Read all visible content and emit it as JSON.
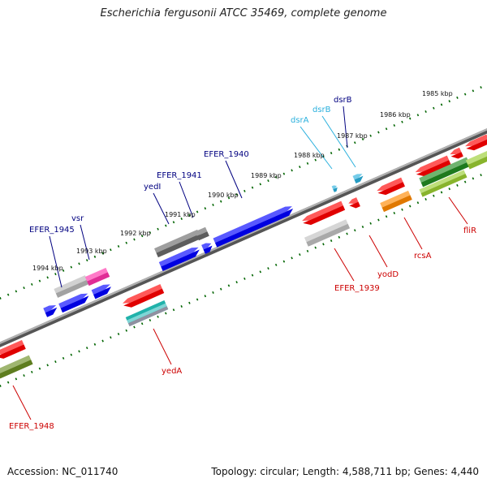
{
  "title": "Escherichia fergusonii ATCC 35469, complete genome",
  "footer": {
    "accession": "Accession: NC_011740",
    "topology": "Topology: circular; Length: 4,588,711 bp; Genes: 4,440"
  },
  "colors": {
    "forward_label": "#000080",
    "reverse_label": "#cc0000",
    "rna_label": "#2ab0dd",
    "track": "#777777",
    "tick": "#006400"
  },
  "ruler": {
    "labels": [
      {
        "text": "1985 kbp",
        "kbp": 1985
      },
      {
        "text": "1986 kbp",
        "kbp": 1986
      },
      {
        "text": "1987 kbp",
        "kbp": 1987
      },
      {
        "text": "1988 kbp",
        "kbp": 1988
      },
      {
        "text": "1989 kbp",
        "kbp": 1989
      },
      {
        "text": "1990 kbp",
        "kbp": 1990
      },
      {
        "text": "1991 kbp",
        "kbp": 1991
      },
      {
        "text": "1992 kbp",
        "kbp": 1992
      },
      {
        "text": "1993 kbp",
        "kbp": 1993
      },
      {
        "text": "1994 kbp",
        "kbp": 1994
      }
    ]
  },
  "genes": {
    "forward": [
      {
        "name": "EFER_1945",
        "color": "#0000ff"
      },
      {
        "name": "vsr",
        "color": "#0000ff"
      },
      {
        "name": "yedI",
        "color": "#0000ff"
      },
      {
        "name": "EFER_1941",
        "color": "#0000ff"
      },
      {
        "name": "EFER_1940",
        "color": "#0000ff"
      },
      {
        "name": "dsrA",
        "color": "#2ab0dd"
      },
      {
        "name": "dsrB",
        "color": "#2ab0dd"
      },
      {
        "name": "dsrB",
        "color": "#0000ff"
      }
    ],
    "reverse": [
      {
        "name": "EFER_1948",
        "color": "#ff0000"
      },
      {
        "name": "yedA",
        "color": "#ff0000"
      },
      {
        "name": "EFER_1939",
        "color": "#ff0000"
      },
      {
        "name": "yodD",
        "color": "#ff0000"
      },
      {
        "name": "rcsA",
        "color": "#ff0000"
      },
      {
        "name": "fliR",
        "color": "#ff0000"
      }
    ]
  }
}
